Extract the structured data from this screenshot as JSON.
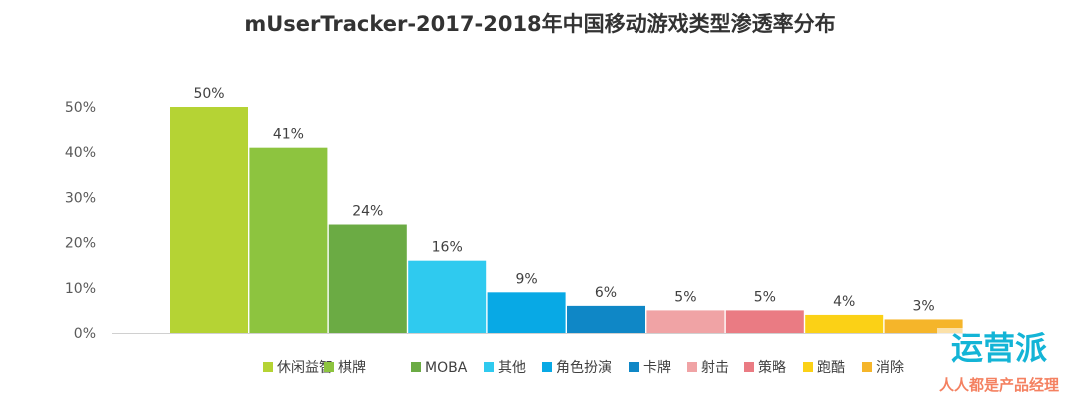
{
  "chart_data": {
    "type": "bar",
    "title": "mUserTracker-2017-2018年中国移动游戏类型渗透率分布",
    "xlabel": "",
    "ylabel": "",
    "ylim": [
      0,
      50
    ],
    "yticks": [
      "0%",
      "10%",
      "20%",
      "30%",
      "40%",
      "50%"
    ],
    "grid": false,
    "legend_position": "bottom",
    "categories": [
      "休闲益智",
      "棋牌",
      "MOBA",
      "其他",
      "角色扮演",
      "卡牌",
      "射击",
      "策略",
      "跑酷",
      "消除"
    ],
    "values": [
      50,
      41,
      24,
      16,
      9,
      6,
      5,
      5,
      4,
      3
    ],
    "labels": [
      "50%",
      "41%",
      "24%",
      "16%",
      "9%",
      "6%",
      "5%",
      "5%",
      "4%",
      "3%"
    ],
    "colors": [
      "#b5d334",
      "#8dc43f",
      "#6bab44",
      "#2fcaef",
      "#08a9e5",
      "#0f87c6",
      "#f0a3a5",
      "#ea7b83",
      "#fbd116",
      "#f5b52a"
    ]
  },
  "watermark": {
    "text_top": "运营派",
    "text_bottom": "人人都是产品经理",
    "color": "#13b4d6"
  }
}
